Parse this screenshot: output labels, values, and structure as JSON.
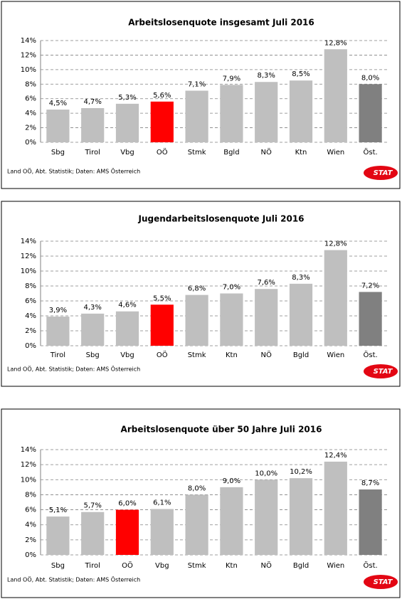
{
  "chart_data": [
    {
      "type": "bar",
      "title": "Arbeitslosenquote insgesamt Juli 2016",
      "categories": [
        "Sbg",
        "Tirol",
        "Vbg",
        "OÖ",
        "Stmk",
        "Bgld",
        "NÖ",
        "Ktn",
        "Wien",
        "Öst."
      ],
      "values": [
        4.5,
        4.7,
        5.3,
        5.6,
        7.1,
        7.9,
        8.3,
        8.5,
        12.8,
        8.0
      ],
      "value_labels": [
        "4,5%",
        "4,7%",
        "5,3%",
        "5,6%",
        "7,1%",
        "7,9%",
        "8,3%",
        "8,5%",
        "12,8%",
        "8,0%"
      ],
      "colors": [
        "#bfbfbf",
        "#bfbfbf",
        "#bfbfbf",
        "#ff0000",
        "#bfbfbf",
        "#bfbfbf",
        "#bfbfbf",
        "#bfbfbf",
        "#bfbfbf",
        "#808080"
      ],
      "ylim": [
        0,
        14
      ],
      "yticks": [
        {
          "value": 0,
          "label": "0%"
        },
        {
          "value": 2,
          "label": "2%"
        },
        {
          "value": 4,
          "label": "4%"
        },
        {
          "value": 6,
          "label": "6%"
        },
        {
          "value": 8,
          "label": "8%"
        },
        {
          "value": 10,
          "label": "10%"
        },
        {
          "value": 12,
          "label": "12%"
        },
        {
          "value": 14,
          "label": "14%"
        }
      ],
      "grid": true,
      "source": "Land OÖ, Abt. Statistik; Daten: AMS Österreich",
      "logo": "STAT"
    },
    {
      "type": "bar",
      "title": "Jugendarbeitslosenquote Juli 2016",
      "categories": [
        "Tirol",
        "Sbg",
        "Vbg",
        "OÖ",
        "Stmk",
        "Ktn",
        "NÖ",
        "Bgld",
        "Wien",
        "Öst."
      ],
      "values": [
        3.9,
        4.3,
        4.6,
        5.5,
        6.8,
        7.0,
        7.6,
        8.3,
        12.8,
        7.2
      ],
      "value_labels": [
        "3,9%",
        "4,3%",
        "4,6%",
        "5,5%",
        "6,8%",
        "7,0%",
        "7,6%",
        "8,3%",
        "12,8%",
        "7,2%"
      ],
      "colors": [
        "#bfbfbf",
        "#bfbfbf",
        "#bfbfbf",
        "#ff0000",
        "#bfbfbf",
        "#bfbfbf",
        "#bfbfbf",
        "#bfbfbf",
        "#bfbfbf",
        "#808080"
      ],
      "ylim": [
        0,
        14
      ],
      "yticks": [
        {
          "value": 0,
          "label": "0%"
        },
        {
          "value": 2,
          "label": "2%"
        },
        {
          "value": 4,
          "label": "4%"
        },
        {
          "value": 6,
          "label": "6%"
        },
        {
          "value": 8,
          "label": "8%"
        },
        {
          "value": 10,
          "label": "10%"
        },
        {
          "value": 12,
          "label": "12%"
        },
        {
          "value": 14,
          "label": "14%"
        }
      ],
      "grid": true,
      "source": "Land OÖ, Abt. Statistik; Daten: AMS Österreich",
      "logo": "STAT"
    },
    {
      "type": "bar",
      "title": "Arbeitslosenquote über 50 Jahre Juli 2016",
      "categories": [
        "Sbg",
        "Tirol",
        "OÖ",
        "Vbg",
        "Stmk",
        "Ktn",
        "NÖ",
        "Bgld",
        "Wien",
        "Öst."
      ],
      "values": [
        5.1,
        5.7,
        6.0,
        6.1,
        8.0,
        9.0,
        10.0,
        10.2,
        12.4,
        8.7
      ],
      "value_labels": [
        "5,1%",
        "5,7%",
        "6,0%",
        "6,1%",
        "8,0%",
        "9,0%",
        "10,0%",
        "10,2%",
        "12,4%",
        "8,7%"
      ],
      "colors": [
        "#bfbfbf",
        "#bfbfbf",
        "#ff0000",
        "#bfbfbf",
        "#bfbfbf",
        "#bfbfbf",
        "#bfbfbf",
        "#bfbfbf",
        "#bfbfbf",
        "#808080"
      ],
      "ylim": [
        0,
        14
      ],
      "yticks": [
        {
          "value": 0,
          "label": "0%"
        },
        {
          "value": 2,
          "label": "2%"
        },
        {
          "value": 4,
          "label": "4%"
        },
        {
          "value": 6,
          "label": "6%"
        },
        {
          "value": 8,
          "label": "8%"
        },
        {
          "value": 10,
          "label": "10%"
        },
        {
          "value": 12,
          "label": "12%"
        },
        {
          "value": 14,
          "label": "14%"
        }
      ],
      "grid": true,
      "source": "Land OÖ, Abt. Statistik; Daten: AMS Österreich",
      "logo": "STAT"
    }
  ]
}
